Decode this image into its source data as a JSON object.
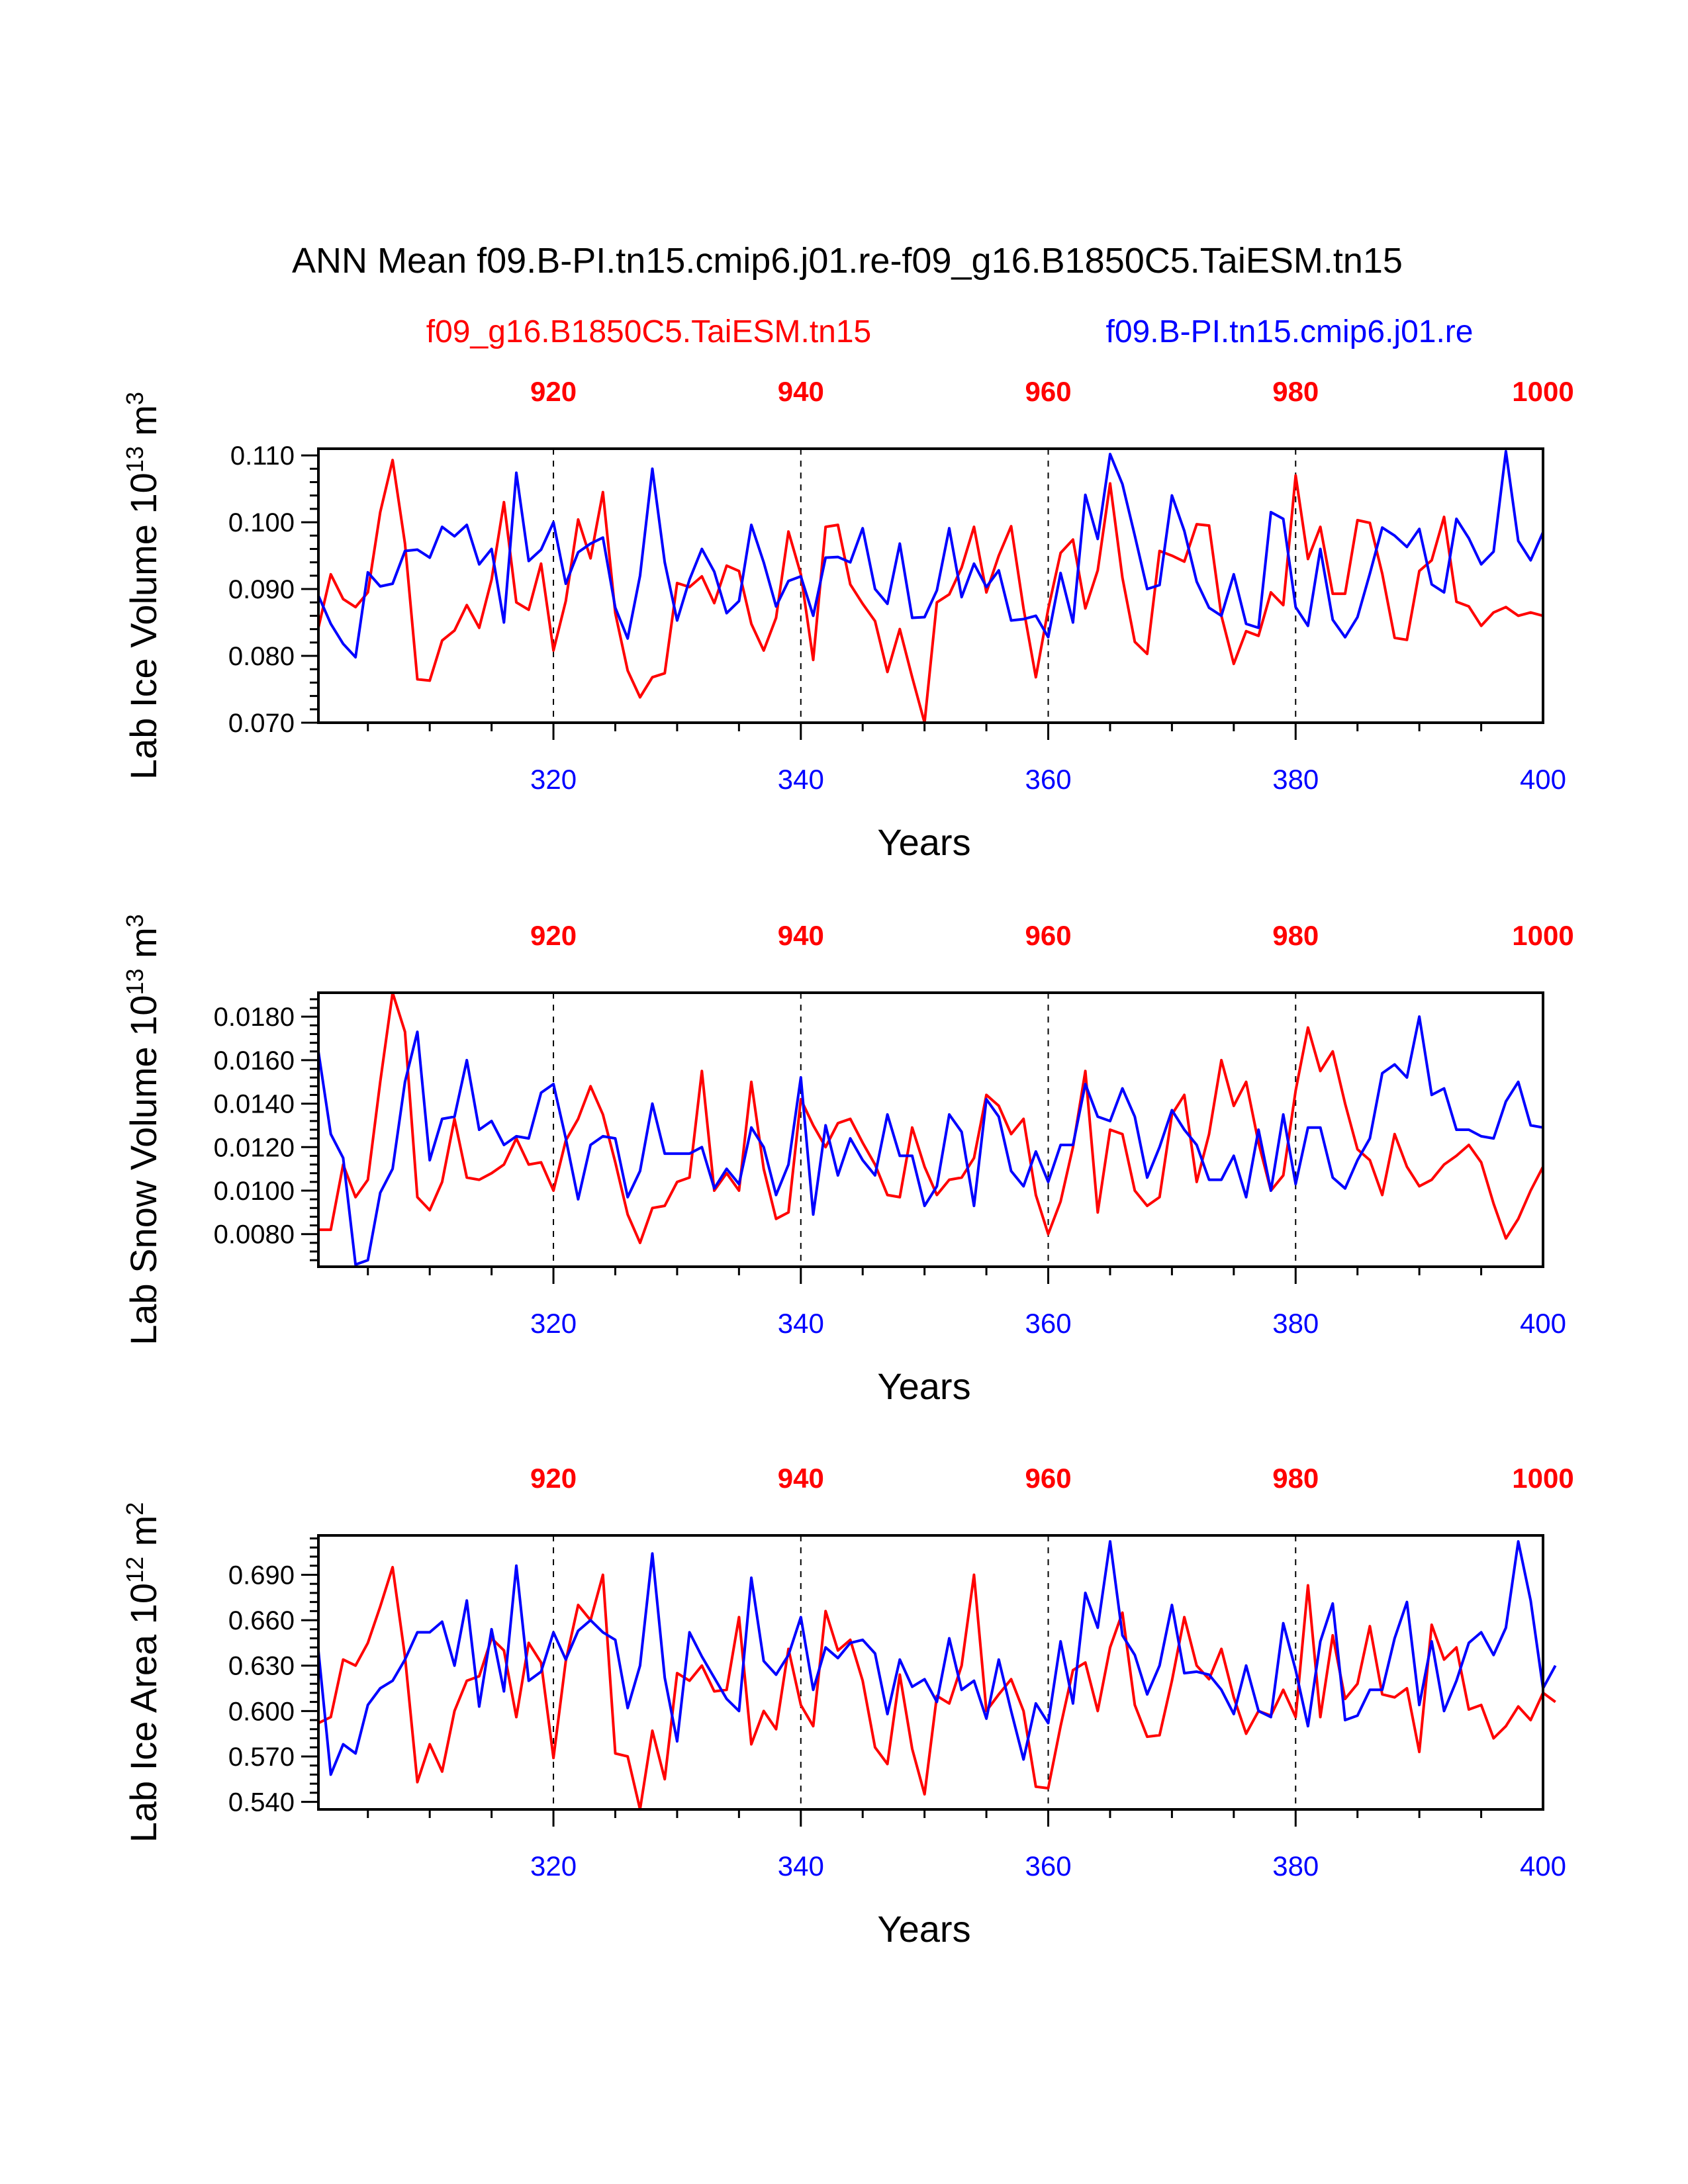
{
  "figure": {
    "title": "ANN Mean f09.B-PI.tn15.cmip6.j01.re-f09_g16.B1850C5.TaiESM.tn15",
    "legend": [
      {
        "label": "f09_g16.B1850C5.TaiESM.tn15",
        "color": "#ff0000"
      },
      {
        "label": "f09.B-PI.tn15.cmip6.j01.re",
        "color": "#0000ff"
      }
    ]
  },
  "chart_data": [
    {
      "type": "line",
      "ylabel": "Lab Ice Volume 10",
      "ylabel_exp": "13",
      "ylabel_unit": " m",
      "ylabel_unit_exp": "3",
      "xlabel": "Years",
      "xlim": [
        301,
        400
      ],
      "ylim": [
        0.07,
        0.111
      ],
      "yticks": [
        "0.070",
        "0.080",
        "0.090",
        "0.100",
        "0.110"
      ],
      "xticks": [
        "320",
        "340",
        "360",
        "380",
        "400"
      ],
      "top_xticks": [
        "920",
        "940",
        "960",
        "980",
        "1000"
      ],
      "top_axis_offset": 600,
      "vlines": [
        320,
        340,
        360,
        380
      ],
      "series": [
        {
          "name": "f09_g16.B1850C5.TaiESM.tn15",
          "color": "#ff0000",
          "x_start": 301,
          "values": [
            0.0842,
            0.0922,
            0.0885,
            0.0873,
            0.0895,
            0.1015,
            0.1093,
            0.0968,
            0.0765,
            0.0763,
            0.0823,
            0.0838,
            0.0876,
            0.0842,
            0.0914,
            0.103,
            0.088,
            0.0869,
            0.0938,
            0.0808,
            0.0882,
            0.1004,
            0.0946,
            0.1045,
            0.0864,
            0.0778,
            0.0738,
            0.0768,
            0.0774,
            0.0909,
            0.0903,
            0.0919,
            0.0879,
            0.0935,
            0.0927,
            0.0848,
            0.0808,
            0.0857,
            0.0986,
            0.0922,
            0.0794,
            0.0993,
            0.0996,
            0.0907,
            0.0878,
            0.0852,
            0.0776,
            0.084,
            0.0768,
            0.07,
            0.088,
            0.0892,
            0.0932,
            0.0993,
            0.0895,
            0.095,
            0.0994,
            0.0871,
            0.0768,
            0.087,
            0.0954,
            0.0974,
            0.0871,
            0.0928,
            0.1058,
            0.0917,
            0.0821,
            0.0803,
            0.0957,
            0.095,
            0.0941,
            0.0997,
            0.0995,
            0.086,
            0.0788,
            0.0837,
            0.083,
            0.0895,
            0.0876,
            0.107,
            0.0945,
            0.0993,
            0.0893,
            0.0893,
            0.1003,
            0.0999,
            0.0923,
            0.0827,
            0.0824,
            0.0927,
            0.0943,
            0.1008,
            0.0881,
            0.0874,
            0.0845,
            0.0865,
            0.0873,
            0.086,
            0.0865,
            0.086
          ]
        },
        {
          "name": "f09.B-PI.tn15.cmip6.j01.re",
          "color": "#0000ff",
          "x_start": 301,
          "values": [
            0.089,
            0.0848,
            0.0818,
            0.0798,
            0.0925,
            0.0904,
            0.0908,
            0.0957,
            0.0959,
            0.0947,
            0.0993,
            0.0979,
            0.0996,
            0.0937,
            0.096,
            0.085,
            0.1074,
            0.0942,
            0.0959,
            0.1,
            0.0908,
            0.0955,
            0.0968,
            0.0977,
            0.0872,
            0.0826,
            0.092,
            0.108,
            0.094,
            0.0853,
            0.0914,
            0.096,
            0.0926,
            0.0864,
            0.0882,
            0.0996,
            0.094,
            0.0874,
            0.0912,
            0.0919,
            0.086,
            0.0947,
            0.0948,
            0.094,
            0.0991,
            0.09,
            0.0878,
            0.0968,
            0.0857,
            0.0858,
            0.0898,
            0.0991,
            0.0888,
            0.0938,
            0.0903,
            0.0928,
            0.0853,
            0.0855,
            0.086,
            0.0828,
            0.0924,
            0.085,
            0.1041,
            0.0975,
            0.1102,
            0.1057,
            0.098,
            0.09,
            0.0906,
            0.104,
            0.0987,
            0.0911,
            0.0872,
            0.086,
            0.0922,
            0.0848,
            0.0842,
            0.1015,
            0.1005,
            0.0873,
            0.0845,
            0.096,
            0.0854,
            0.0828,
            0.0858,
            0.0923,
            0.0992,
            0.098,
            0.0963,
            0.099,
            0.0907,
            0.0895,
            0.1005,
            0.0976,
            0.0937,
            0.0956,
            0.1106,
            0.0972,
            0.0943,
            0.0985
          ]
        }
      ]
    },
    {
      "type": "line",
      "ylabel": "Lab Snow Volume 10",
      "ylabel_exp": "13",
      "ylabel_unit": " m",
      "ylabel_unit_exp": "3",
      "xlabel": "Years",
      "xlim": [
        301,
        400
      ],
      "ylim": [
        0.0065,
        0.0191
      ],
      "yticks": [
        "0.0080",
        "0.0100",
        "0.0120",
        "0.0140",
        "0.0160",
        "0.0180"
      ],
      "xticks": [
        "320",
        "340",
        "360",
        "380",
        "400"
      ],
      "top_xticks": [
        "920",
        "940",
        "960",
        "980",
        "1000"
      ],
      "top_axis_offset": 600,
      "vlines": [
        320,
        340,
        360,
        380
      ],
      "series": [
        {
          "name": "f09_g16.B1850C5.TaiESM.tn15",
          "color": "#ff0000",
          "x_start": 301,
          "values": [
            0.0082,
            0.0082,
            0.0112,
            0.0097,
            0.0105,
            0.015,
            0.0191,
            0.0173,
            0.0097,
            0.0091,
            0.0104,
            0.0133,
            0.0106,
            0.0105,
            0.0108,
            0.0112,
            0.0124,
            0.0112,
            0.0113,
            0.01,
            0.0123,
            0.0133,
            0.0148,
            0.0135,
            0.0113,
            0.0089,
            0.0076,
            0.0092,
            0.0093,
            0.0104,
            0.0106,
            0.0155,
            0.01,
            0.0108,
            0.01,
            0.015,
            0.011,
            0.0087,
            0.009,
            0.0142,
            0.013,
            0.012,
            0.0131,
            0.0133,
            0.0122,
            0.0112,
            0.0098,
            0.0097,
            0.0129,
            0.0111,
            0.0098,
            0.0105,
            0.0106,
            0.0115,
            0.0144,
            0.0139,
            0.0126,
            0.0133,
            0.0098,
            0.008,
            0.0095,
            0.012,
            0.0155,
            0.009,
            0.0128,
            0.0126,
            0.01,
            0.0093,
            0.0097,
            0.0135,
            0.0144,
            0.0104,
            0.0126,
            0.016,
            0.0139,
            0.015,
            0.0122,
            0.01,
            0.0107,
            0.0146,
            0.0175,
            0.0155,
            0.0164,
            0.014,
            0.0119,
            0.0114,
            0.0098,
            0.0126,
            0.0111,
            0.0102,
            0.0105,
            0.0112,
            0.0116,
            0.0121,
            0.0113,
            0.0094,
            0.0078,
            0.0087,
            0.01,
            0.0111
          ]
        },
        {
          "name": "f09.B-PI.tn15.cmip6.j01.re",
          "color": "#0000ff",
          "x_start": 301,
          "values": [
            0.0164,
            0.0126,
            0.0115,
            0.0066,
            0.0068,
            0.0099,
            0.011,
            0.015,
            0.0173,
            0.0114,
            0.0133,
            0.0134,
            0.016,
            0.0128,
            0.0132,
            0.0121,
            0.0125,
            0.0124,
            0.0145,
            0.0149,
            0.0124,
            0.0096,
            0.0121,
            0.0125,
            0.0124,
            0.0097,
            0.0109,
            0.014,
            0.0117,
            0.0117,
            0.0117,
            0.012,
            0.0101,
            0.011,
            0.0103,
            0.0129,
            0.012,
            0.0098,
            0.0112,
            0.0152,
            0.0089,
            0.013,
            0.0107,
            0.0124,
            0.0114,
            0.0107,
            0.0135,
            0.0116,
            0.0116,
            0.0093,
            0.0102,
            0.0135,
            0.0127,
            0.0093,
            0.0142,
            0.0134,
            0.0109,
            0.0102,
            0.0118,
            0.0104,
            0.0121,
            0.0121,
            0.0149,
            0.0134,
            0.0132,
            0.0147,
            0.0134,
            0.0106,
            0.012,
            0.0137,
            0.0128,
            0.0121,
            0.0105,
            0.0105,
            0.0116,
            0.0097,
            0.0128,
            0.01,
            0.0135,
            0.0103,
            0.0129,
            0.0129,
            0.0106,
            0.0101,
            0.0114,
            0.0124,
            0.0154,
            0.0158,
            0.0152,
            0.018,
            0.0144,
            0.0147,
            0.0128,
            0.0128,
            0.0125,
            0.0124,
            0.0141,
            0.015,
            0.013,
            0.0129
          ]
        }
      ]
    },
    {
      "type": "line",
      "ylabel": "Lab Ice Area 10",
      "ylabel_exp": "12",
      "ylabel_unit": " m",
      "ylabel_unit_exp": "2",
      "xlabel": "Years",
      "xlim": [
        301,
        400
      ],
      "ylim": [
        0.535,
        0.716
      ],
      "yticks": [
        "0.540",
        "0.570",
        "0.600",
        "0.630",
        "0.660",
        "0.690"
      ],
      "xticks": [
        "320",
        "340",
        "360",
        "380",
        "400"
      ],
      "top_xticks": [
        "920",
        "940",
        "960",
        "980",
        "1000"
      ],
      "top_axis_offset": 600,
      "vlines": [
        320,
        340,
        360,
        380
      ],
      "series": [
        {
          "name": "f09_g16.B1850C5.TaiESM.tn15",
          "color": "#ff0000",
          "x_start": 301,
          "values": [
            0.592,
            0.596,
            0.634,
            0.63,
            0.645,
            0.669,
            0.695,
            0.636,
            0.553,
            0.578,
            0.56,
            0.6,
            0.62,
            0.623,
            0.648,
            0.64,
            0.596,
            0.645,
            0.632,
            0.569,
            0.633,
            0.67,
            0.66,
            0.69,
            0.572,
            0.57,
            0.535,
            0.587,
            0.555,
            0.625,
            0.62,
            0.63,
            0.613,
            0.614,
            0.662,
            0.578,
            0.6,
            0.588,
            0.641,
            0.604,
            0.59,
            0.666,
            0.64,
            0.647,
            0.62,
            0.576,
            0.565,
            0.624,
            0.575,
            0.545,
            0.61,
            0.605,
            0.63,
            0.69,
            0.6,
            0.611,
            0.621,
            0.6,
            0.55,
            0.549,
            0.59,
            0.627,
            0.632,
            0.6,
            0.642,
            0.665,
            0.604,
            0.583,
            0.584,
            0.62,
            0.662,
            0.63,
            0.621,
            0.641,
            0.609,
            0.585,
            0.6,
            0.597,
            0.614,
            0.596,
            0.683,
            0.596,
            0.65,
            0.608,
            0.618,
            0.656,
            0.611,
            0.609,
            0.615,
            0.573,
            0.657,
            0.634,
            0.642,
            0.601,
            0.604,
            0.582,
            0.59,
            0.603,
            0.594,
            0.612,
            0.606
          ]
        },
        {
          "name": "f09.B-PI.tn15.cmip6.j01.re",
          "color": "#0000ff",
          "x_start": 301,
          "values": [
            0.64,
            0.558,
            0.578,
            0.572,
            0.604,
            0.615,
            0.62,
            0.634,
            0.652,
            0.652,
            0.659,
            0.63,
            0.673,
            0.603,
            0.654,
            0.613,
            0.696,
            0.62,
            0.626,
            0.652,
            0.634,
            0.653,
            0.66,
            0.652,
            0.647,
            0.602,
            0.63,
            0.704,
            0.622,
            0.58,
            0.652,
            0.636,
            0.622,
            0.608,
            0.6,
            0.688,
            0.633,
            0.624,
            0.637,
            0.662,
            0.614,
            0.642,
            0.635,
            0.645,
            0.647,
            0.638,
            0.598,
            0.634,
            0.616,
            0.621,
            0.606,
            0.648,
            0.614,
            0.62,
            0.595,
            0.634,
            0.6,
            0.568,
            0.605,
            0.592,
            0.646,
            0.605,
            0.678,
            0.655,
            0.712,
            0.65,
            0.637,
            0.611,
            0.63,
            0.67,
            0.625,
            0.626,
            0.624,
            0.614,
            0.598,
            0.63,
            0.6,
            0.596,
            0.658,
            0.627,
            0.59,
            0.646,
            0.671,
            0.594,
            0.597,
            0.614,
            0.614,
            0.648,
            0.672,
            0.604,
            0.646,
            0.6,
            0.62,
            0.645,
            0.652,
            0.637,
            0.655,
            0.712,
            0.673,
            0.615,
            0.63
          ]
        }
      ]
    }
  ]
}
